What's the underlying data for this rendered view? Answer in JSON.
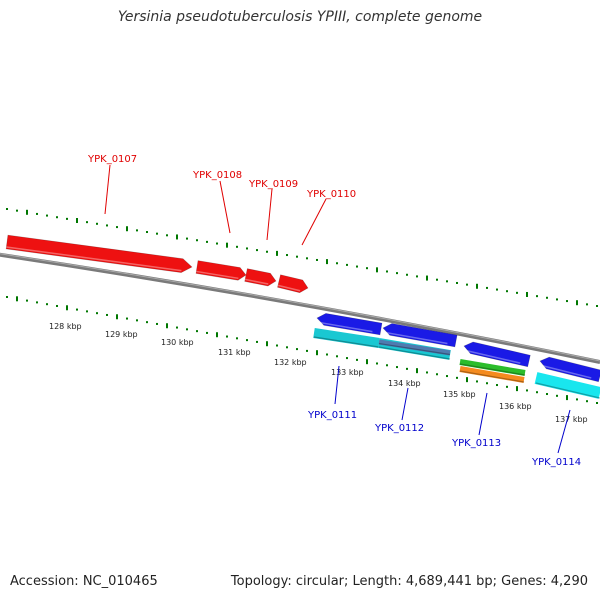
{
  "title": "Yersinia pseudotuberculosis YPIII, complete genome",
  "footer": {
    "accession": "Accession: NC_010465",
    "summary": "Topology: circular; Length: 4,689,441 bp; Genes: 4,290"
  },
  "colors": {
    "tick": "#007700",
    "backbone": "#7a7a7a",
    "forward_gene": "#ee1111",
    "reverse_gene": "#1a1ae6",
    "cyan_feature": "#19c8d2",
    "steel_feature": "#4f7bb0",
    "green_feature": "#2bbd2b",
    "orange_feature": "#f58b1f",
    "top_label": "#e00000",
    "bottom_label": "#0000cc"
  },
  "kbp_labels": [
    "128 kbp",
    "129 kbp",
    "130 kbp",
    "131 kbp",
    "132 kbp",
    "133 kbp",
    "134 kbp",
    "135 kbp",
    "136 kbp",
    "137 kbp"
  ],
  "top_loci": [
    "YPK_0107",
    "YPK_0108",
    "YPK_0109",
    "YPK_0110"
  ],
  "bottom_loci": [
    "YPK_0111",
    "YPK_0112",
    "YPK_0113",
    "YPK_0114"
  ]
}
